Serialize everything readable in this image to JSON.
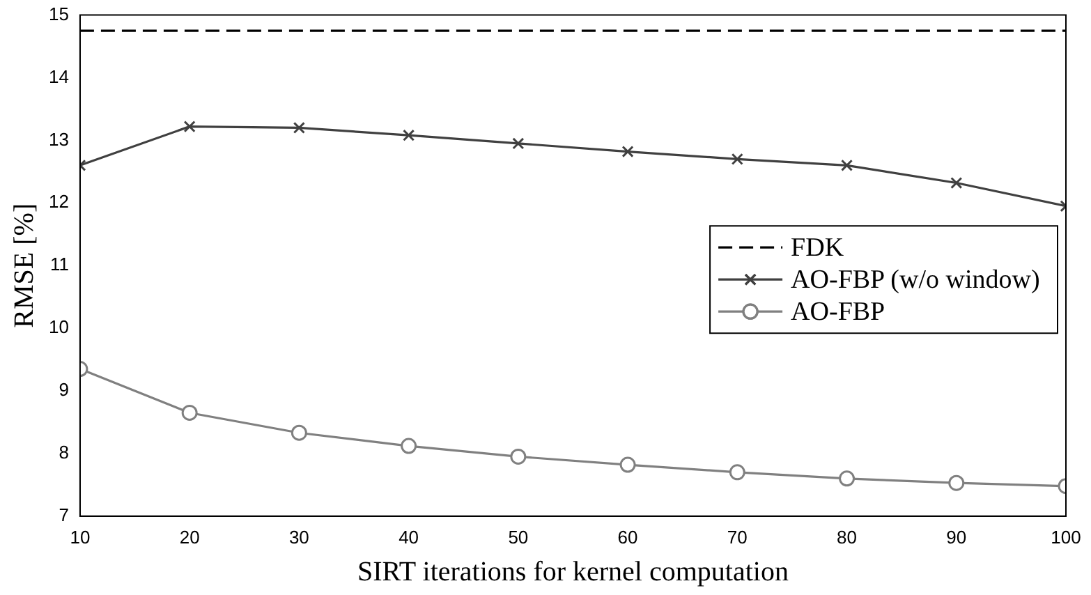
{
  "chart_data": {
    "type": "line",
    "xlabel": "SIRT iterations for kernel computation",
    "ylabel": "RMSE [%]",
    "x": [
      10,
      20,
      30,
      40,
      50,
      60,
      70,
      80,
      90,
      100
    ],
    "xlim": [
      10,
      100
    ],
    "xticks": [
      10,
      20,
      30,
      40,
      50,
      60,
      70,
      80,
      90,
      100
    ],
    "ylim": [
      7,
      15
    ],
    "yticks": [
      7,
      8,
      9,
      10,
      11,
      12,
      13,
      14,
      15
    ],
    "grid": false,
    "legend": "right",
    "series": [
      {
        "name": "FDK",
        "color": "#000000",
        "marker": "none",
        "line_style": "dashed",
        "values": [
          14.75,
          14.75,
          14.75,
          14.75,
          14.75,
          14.75,
          14.75,
          14.75,
          14.75,
          14.75
        ]
      },
      {
        "name": "AO-FBP (w/o window)",
        "color": "#404040",
        "marker": "cross",
        "line_style": "solid",
        "values": [
          12.6,
          13.22,
          13.2,
          13.08,
          12.95,
          12.82,
          12.7,
          12.6,
          12.32,
          11.95
        ]
      },
      {
        "name": "AO-FBP",
        "color": "#808080",
        "marker": "circle",
        "line_style": "solid",
        "values": [
          9.35,
          8.65,
          8.33,
          8.12,
          7.95,
          7.82,
          7.7,
          7.6,
          7.53,
          7.48
        ]
      }
    ]
  }
}
